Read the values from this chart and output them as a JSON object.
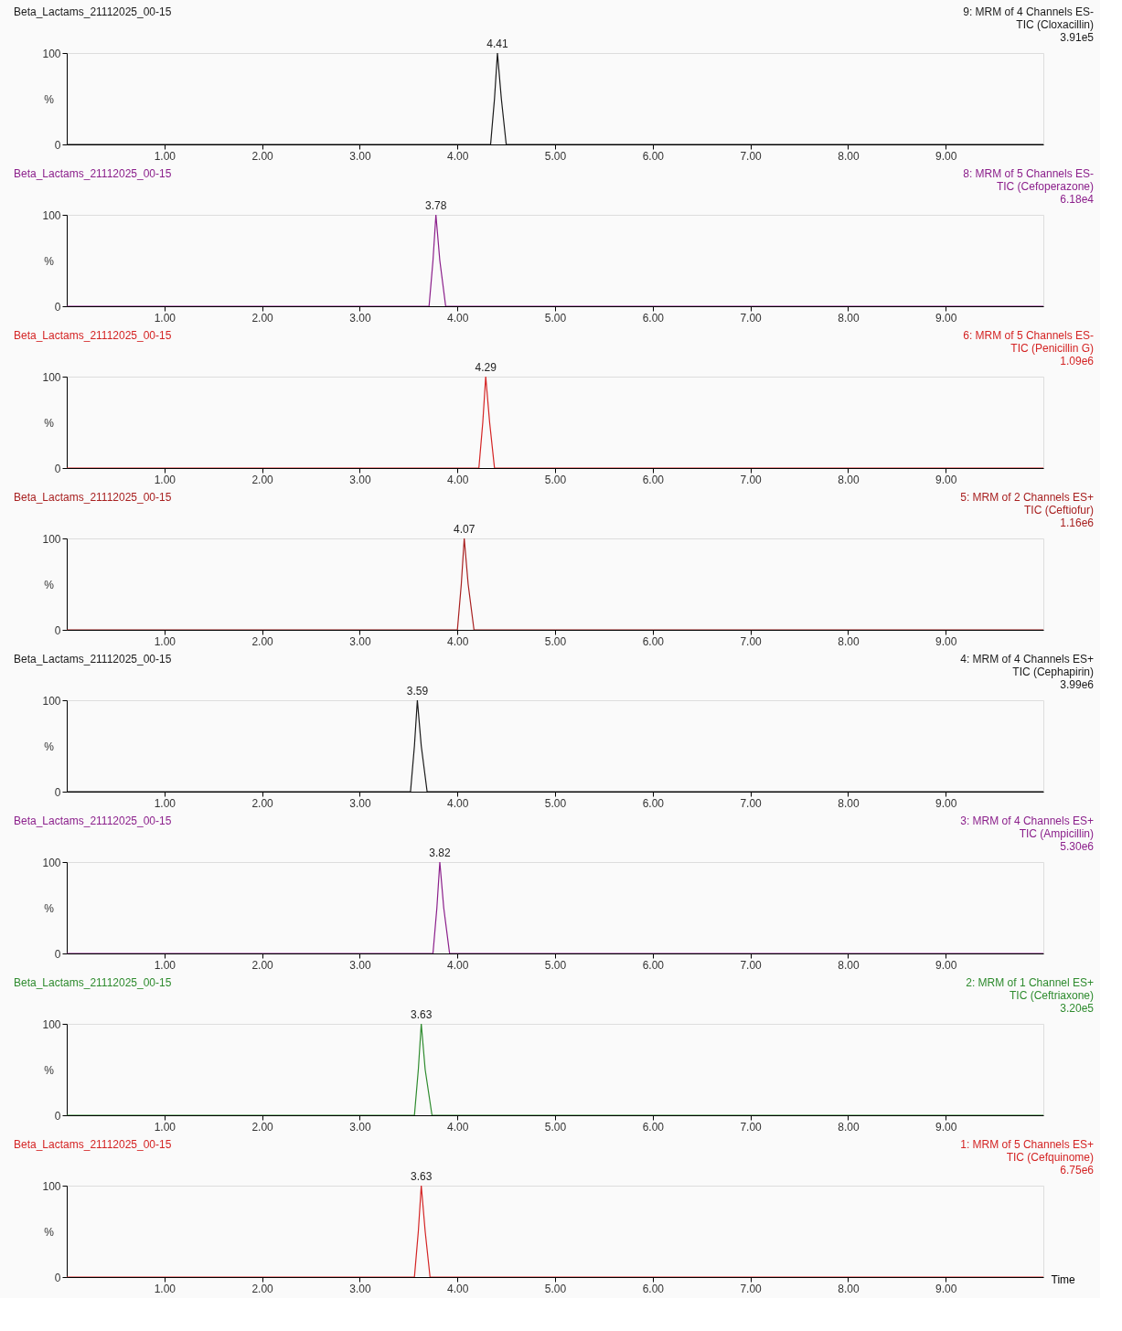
{
  "chart_data": [
    {
      "type": "line",
      "title": "Beta_Lactams_21112025_00-15",
      "ylabel": "%",
      "annotations": [
        "9: MRM of 4 Channels ES-",
        "TIC (Cloxacillin)",
        "3.91e5",
        {
          "text": "4.41",
          "x": 4.41,
          "y": 100
        }
      ],
      "xlim": [
        0,
        10
      ],
      "ylim": [
        0,
        100
      ],
      "xticks": [
        {
          "value": 1,
          "label": "1.00"
        },
        {
          "value": 2,
          "label": "2.00"
        },
        {
          "value": 3,
          "label": "3.00"
        },
        {
          "value": 4,
          "label": "4.00"
        },
        {
          "value": 5,
          "label": "5.00"
        },
        {
          "value": 6,
          "label": "6.00"
        },
        {
          "value": 7,
          "label": "7.00"
        },
        {
          "value": 8,
          "label": "8.00"
        },
        {
          "value": 9,
          "label": "9.00"
        }
      ],
      "yticks": [
        0,
        100
      ],
      "series": [
        {
          "color": "#1a1a1a",
          "x": [
            0,
            4.34,
            4.38,
            4.41,
            4.45,
            4.5,
            10
          ],
          "values": [
            0,
            0,
            50,
            100,
            50,
            0,
            0
          ]
        }
      ]
    },
    {
      "type": "line",
      "title": "Beta_Lactams_21112025_00-15",
      "ylabel": "%",
      "annotations": [
        "8: MRM of 5 Channels ES-",
        "TIC (Cefoperazone)",
        "6.18e4",
        {
          "text": "3.78",
          "x": 3.78,
          "y": 100
        }
      ],
      "xlim": [
        0,
        10
      ],
      "ylim": [
        0,
        100
      ],
      "xticks": [
        {
          "value": 1,
          "label": "1.00"
        },
        {
          "value": 2,
          "label": "2.00"
        },
        {
          "value": 3,
          "label": "3.00"
        },
        {
          "value": 4,
          "label": "4.00"
        },
        {
          "value": 5,
          "label": "5.00"
        },
        {
          "value": 6,
          "label": "6.00"
        },
        {
          "value": 7,
          "label": "7.00"
        },
        {
          "value": 8,
          "label": "8.00"
        },
        {
          "value": 9,
          "label": "9.00"
        }
      ],
      "yticks": [
        0,
        100
      ],
      "series": [
        {
          "color": "#8b1f8b",
          "x": [
            0,
            3.71,
            3.75,
            3.78,
            3.82,
            3.88,
            10
          ],
          "values": [
            0,
            0,
            50,
            100,
            50,
            0,
            0
          ]
        }
      ]
    },
    {
      "type": "line",
      "title": "Beta_Lactams_21112025_00-15",
      "ylabel": "%",
      "annotations": [
        "6: MRM of 5 Channels ES-",
        "TIC (Penicillin G)",
        "1.09e6",
        {
          "text": "4.29",
          "x": 4.29,
          "y": 100
        }
      ],
      "xlim": [
        0,
        10
      ],
      "ylim": [
        0,
        100
      ],
      "xticks": [
        {
          "value": 1,
          "label": "1.00"
        },
        {
          "value": 2,
          "label": "2.00"
        },
        {
          "value": 3,
          "label": "3.00"
        },
        {
          "value": 4,
          "label": "4.00"
        },
        {
          "value": 5,
          "label": "5.00"
        },
        {
          "value": 6,
          "label": "6.00"
        },
        {
          "value": 7,
          "label": "7.00"
        },
        {
          "value": 8,
          "label": "8.00"
        },
        {
          "value": 9,
          "label": "9.00"
        }
      ],
      "yticks": [
        0,
        100
      ],
      "series": [
        {
          "color": "#d42424",
          "x": [
            0,
            4.22,
            4.26,
            4.29,
            4.33,
            4.38,
            10
          ],
          "values": [
            0,
            0,
            50,
            100,
            50,
            0,
            0
          ]
        }
      ]
    },
    {
      "type": "line",
      "title": "Beta_Lactams_21112025_00-15",
      "ylabel": "%",
      "annotations": [
        "5: MRM of 2 Channels ES+",
        "TIC (Ceftiofur)",
        "1.16e6",
        {
          "text": "4.07",
          "x": 4.07,
          "y": 100
        }
      ],
      "xlim": [
        0,
        10
      ],
      "ylim": [
        0,
        100
      ],
      "xticks": [
        {
          "value": 1,
          "label": "1.00"
        },
        {
          "value": 2,
          "label": "2.00"
        },
        {
          "value": 3,
          "label": "3.00"
        },
        {
          "value": 4,
          "label": "4.00"
        },
        {
          "value": 5,
          "label": "5.00"
        },
        {
          "value": 6,
          "label": "6.00"
        },
        {
          "value": 7,
          "label": "7.00"
        },
        {
          "value": 8,
          "label": "8.00"
        },
        {
          "value": 9,
          "label": "9.00"
        }
      ],
      "yticks": [
        0,
        100
      ],
      "series": [
        {
          "color": "#a82020",
          "x": [
            0,
            4.0,
            4.04,
            4.07,
            4.11,
            4.17,
            10
          ],
          "values": [
            0,
            0,
            50,
            100,
            50,
            0,
            0
          ]
        }
      ]
    },
    {
      "type": "line",
      "title": "Beta_Lactams_21112025_00-15",
      "ylabel": "%",
      "annotations": [
        "4: MRM of 4 Channels ES+",
        "TIC (Cephapirin)",
        "3.99e6",
        {
          "text": "3.59",
          "x": 3.59,
          "y": 100
        }
      ],
      "xlim": [
        0,
        10
      ],
      "ylim": [
        0,
        100
      ],
      "xticks": [
        {
          "value": 1,
          "label": "1.00"
        },
        {
          "value": 2,
          "label": "2.00"
        },
        {
          "value": 3,
          "label": "3.00"
        },
        {
          "value": 4,
          "label": "4.00"
        },
        {
          "value": 5,
          "label": "5.00"
        },
        {
          "value": 6,
          "label": "6.00"
        },
        {
          "value": 7,
          "label": "7.00"
        },
        {
          "value": 8,
          "label": "8.00"
        },
        {
          "value": 9,
          "label": "9.00"
        }
      ],
      "yticks": [
        0,
        100
      ],
      "series": [
        {
          "color": "#1a1a1a",
          "x": [
            0,
            3.52,
            3.56,
            3.59,
            3.63,
            3.69,
            10
          ],
          "values": [
            0,
            0,
            50,
            100,
            50,
            0,
            0
          ]
        }
      ]
    },
    {
      "type": "line",
      "title": "Beta_Lactams_21112025_00-15",
      "ylabel": "%",
      "annotations": [
        "3: MRM of 4 Channels ES+",
        "TIC (Ampicillin)",
        "5.30e6",
        {
          "text": "3.82",
          "x": 3.82,
          "y": 100
        }
      ],
      "xlim": [
        0,
        10
      ],
      "ylim": [
        0,
        100
      ],
      "xticks": [
        {
          "value": 1,
          "label": "1.00"
        },
        {
          "value": 2,
          "label": "2.00"
        },
        {
          "value": 3,
          "label": "3.00"
        },
        {
          "value": 4,
          "label": "4.00"
        },
        {
          "value": 5,
          "label": "5.00"
        },
        {
          "value": 6,
          "label": "6.00"
        },
        {
          "value": 7,
          "label": "7.00"
        },
        {
          "value": 8,
          "label": "8.00"
        },
        {
          "value": 9,
          "label": "9.00"
        }
      ],
      "yticks": [
        0,
        100
      ],
      "series": [
        {
          "color": "#8b1f8b",
          "x": [
            0,
            3.75,
            3.79,
            3.82,
            3.86,
            3.92,
            10
          ],
          "values": [
            0,
            0,
            50,
            100,
            50,
            0,
            0
          ]
        }
      ]
    },
    {
      "type": "line",
      "title": "Beta_Lactams_21112025_00-15",
      "ylabel": "%",
      "annotations": [
        "2: MRM of 1 Channel ES+",
        "TIC (Ceftriaxone)",
        "3.20e5",
        {
          "text": "3.63",
          "x": 3.63,
          "y": 100
        }
      ],
      "xlim": [
        0,
        10
      ],
      "ylim": [
        0,
        100
      ],
      "xticks": [
        {
          "value": 1,
          "label": "1.00"
        },
        {
          "value": 2,
          "label": "2.00"
        },
        {
          "value": 3,
          "label": "3.00"
        },
        {
          "value": 4,
          "label": "4.00"
        },
        {
          "value": 5,
          "label": "5.00"
        },
        {
          "value": 6,
          "label": "6.00"
        },
        {
          "value": 7,
          "label": "7.00"
        },
        {
          "value": 8,
          "label": "8.00"
        },
        {
          "value": 9,
          "label": "9.00"
        }
      ],
      "yticks": [
        0,
        100
      ],
      "series": [
        {
          "color": "#2e8b2e",
          "x": [
            0,
            3.56,
            3.6,
            3.63,
            3.67,
            3.74,
            10
          ],
          "values": [
            0,
            0,
            50,
            100,
            50,
            0,
            0
          ]
        }
      ]
    },
    {
      "type": "line",
      "title": "Beta_Lactams_21112025_00-15",
      "ylabel": "%",
      "xlabel": "Time",
      "annotations": [
        "1: MRM of 5 Channels ES+",
        "TIC (Cefquinome)",
        "6.75e6",
        {
          "text": "3.63",
          "x": 3.63,
          "y": 100
        }
      ],
      "xlim": [
        0,
        10
      ],
      "ylim": [
        0,
        100
      ],
      "xticks": [
        {
          "value": 1,
          "label": "1.00"
        },
        {
          "value": 2,
          "label": "2.00"
        },
        {
          "value": 3,
          "label": "3.00"
        },
        {
          "value": 4,
          "label": "4.00"
        },
        {
          "value": 5,
          "label": "5.00"
        },
        {
          "value": 6,
          "label": "6.00"
        },
        {
          "value": 7,
          "label": "7.00"
        },
        {
          "value": 8,
          "label": "8.00"
        },
        {
          "value": 9,
          "label": "9.00"
        }
      ],
      "yticks": [
        0,
        100
      ],
      "series": [
        {
          "color": "#d42424",
          "x": [
            0,
            3.56,
            3.6,
            3.63,
            3.67,
            3.72,
            10
          ],
          "values": [
            0,
            0,
            50,
            100,
            50,
            0,
            0
          ]
        }
      ]
    }
  ]
}
